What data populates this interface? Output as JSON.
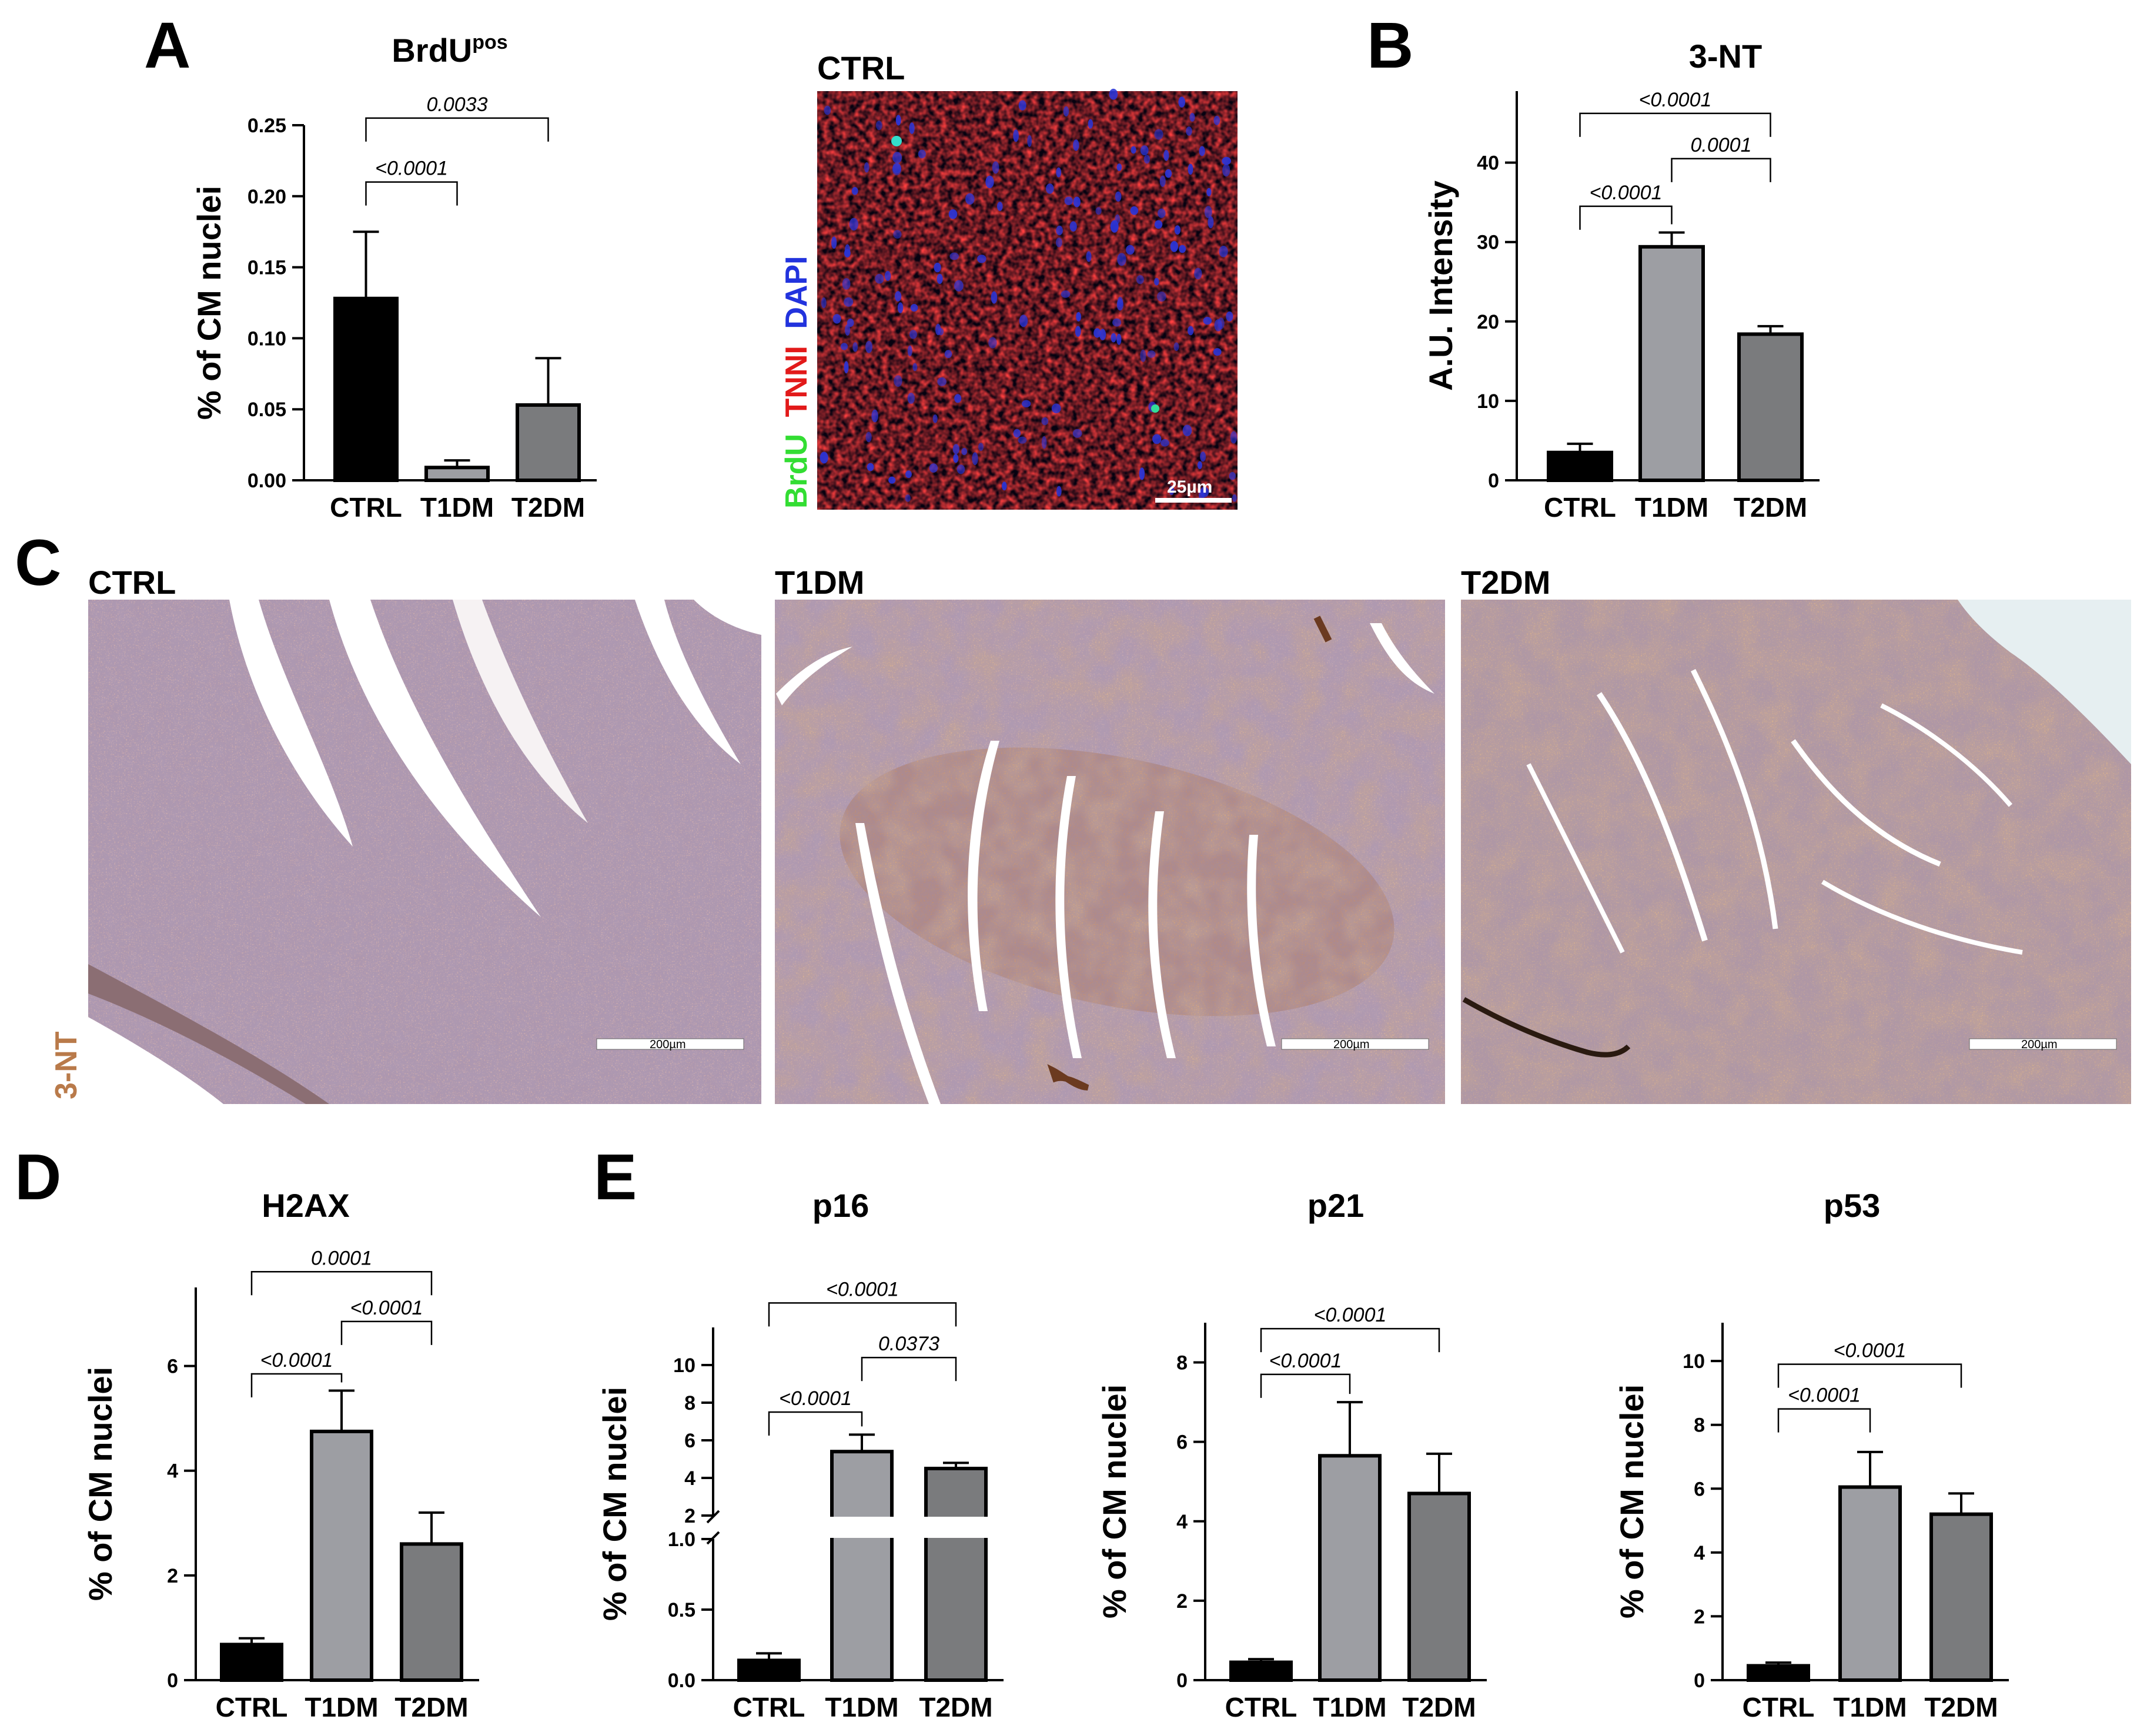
{
  "colors": {
    "ctrl": "#000000",
    "t1dm": "#9d9ea3",
    "t2dm": "#7a7b7d",
    "brdu": "#33dd33",
    "tnni": "#e21a1a",
    "dapi": "#2233dd",
    "stain_3nt": "#b97a4a",
    "tissue_base": "#c9aab2",
    "tissue_brown": "#b5794a"
  },
  "panel_letters": [
    "A",
    "B",
    "C",
    "D",
    "E"
  ],
  "chart_data": [
    {
      "id": "brdu",
      "type": "bar",
      "title": "BrdU",
      "title_sup": "pos",
      "ylabel": "% of CM nuclei",
      "categories": [
        "CTRL",
        "T1DM",
        "T2DM"
      ],
      "values": [
        0.128,
        0.009,
        0.053
      ],
      "errors": [
        0.047,
        0.005,
        0.033
      ],
      "ylim": [
        0,
        0.25
      ],
      "yticks": [
        0,
        0.05,
        0.1,
        0.15,
        0.2,
        0.25
      ],
      "ytick_labels": [
        "0.00",
        "0.05",
        "0.10",
        "0.15",
        "0.20",
        "0.25"
      ],
      "comparisons": [
        {
          "from": 0,
          "to": 1,
          "label": "<0.0001",
          "y": 0.21
        },
        {
          "from": 0,
          "to": 2,
          "label": "0.0033",
          "y": 0.255
        }
      ]
    },
    {
      "id": "nt3",
      "type": "bar",
      "title": "3-NT",
      "ylabel": "A.U. Intensity",
      "categories": [
        "CTRL",
        "T1DM",
        "T2DM"
      ],
      "values": [
        3.5,
        29.4,
        18.4
      ],
      "errors": [
        1.1,
        1.8,
        1.0
      ],
      "ylim": [
        0,
        49
      ],
      "yticks": [
        0,
        10,
        20,
        30,
        40
      ],
      "ytick_labels": [
        "0",
        "10",
        "20",
        "30",
        "40"
      ],
      "comparisons": [
        {
          "from": 0,
          "to": 1,
          "label": "<0.0001",
          "y": 34.5
        },
        {
          "from": 1,
          "to": 2,
          "label": "0.0001",
          "y": 40.5
        },
        {
          "from": 0,
          "to": 2,
          "label": "<0.0001",
          "y": 46.2
        }
      ]
    },
    {
      "id": "h2ax",
      "type": "bar",
      "title": "H2AX",
      "ylabel": "% of CM nuclei",
      "categories": [
        "CTRL",
        "T1DM",
        "T2DM"
      ],
      "values": [
        0.68,
        4.75,
        2.6
      ],
      "errors": [
        0.12,
        0.78,
        0.6
      ],
      "ylim": [
        0,
        7.5
      ],
      "yticks": [
        0,
        2,
        4,
        6
      ],
      "ytick_labels": [
        "0",
        "2",
        "4",
        "6"
      ],
      "comparisons": [
        {
          "from": 0,
          "to": 1,
          "label": "<0.0001",
          "y": 5.85
        },
        {
          "from": 1,
          "to": 2,
          "label": "<0.0001",
          "y": 6.85
        },
        {
          "from": 0,
          "to": 2,
          "label": "0.0001",
          "y": 7.8
        }
      ]
    },
    {
      "id": "p16",
      "type": "bar",
      "title": "p16",
      "ylabel": "% of CM nuclei",
      "categories": [
        "CTRL",
        "T1DM",
        "T2DM"
      ],
      "values": [
        0.14,
        5.4,
        4.5
      ],
      "errors": [
        0.05,
        0.9,
        0.3
      ],
      "broken_axis": true,
      "ylim_lower": [
        0,
        1.0
      ],
      "ylim_upper": [
        2,
        12
      ],
      "yticks_lower": [
        0,
        0.5,
        1.0
      ],
      "ytick_labels_lower": [
        "0.0",
        "0.5",
        "1.0"
      ],
      "yticks_upper": [
        2,
        4,
        6,
        8,
        10
      ],
      "ytick_labels_upper": [
        "2",
        "4",
        "6",
        "8",
        "10"
      ],
      "comparisons": [
        {
          "from": 0,
          "to": 1,
          "label": "<0.0001",
          "y": 7.5
        },
        {
          "from": 1,
          "to": 2,
          "label": "0.0373",
          "y": 10.4
        },
        {
          "from": 0,
          "to": 2,
          "label": "<0.0001",
          "y": 13.3
        }
      ]
    },
    {
      "id": "p21",
      "type": "bar",
      "title": "p21",
      "ylabel": "% of CM nuclei",
      "categories": [
        "CTRL",
        "T1DM",
        "T2DM"
      ],
      "values": [
        0.45,
        5.65,
        4.7
      ],
      "errors": [
        0.08,
        1.35,
        1.0
      ],
      "ylim": [
        0,
        9
      ],
      "yticks": [
        0,
        2,
        4,
        6,
        8
      ],
      "ytick_labels": [
        "0",
        "2",
        "4",
        "6",
        "8"
      ],
      "comparisons": [
        {
          "from": 0,
          "to": 1,
          "label": "<0.0001",
          "y": 7.7
        },
        {
          "from": 0,
          "to": 2,
          "label": "<0.0001",
          "y": 8.85
        }
      ]
    },
    {
      "id": "p53",
      "type": "bar",
      "title": "p53",
      "ylabel": "% of CM nuclei",
      "categories": [
        "CTRL",
        "T1DM",
        "T2DM"
      ],
      "values": [
        0.45,
        6.05,
        5.2
      ],
      "errors": [
        0.1,
        1.1,
        0.65
      ],
      "ylim": [
        0,
        11.2
      ],
      "yticks": [
        0,
        2,
        4,
        6,
        8,
        10
      ],
      "ytick_labels": [
        "0",
        "2",
        "4",
        "6",
        "8",
        "10"
      ],
      "comparisons": [
        {
          "from": 0,
          "to": 1,
          "label": "<0.0001",
          "y": 8.5
        },
        {
          "from": 0,
          "to": 2,
          "label": "<0.0001",
          "y": 9.9
        }
      ]
    }
  ],
  "panel_a_image": {
    "title": "CTRL",
    "stain_labels": [
      {
        "text": "BrdU",
        "color": "#33dd33"
      },
      {
        "text": "TNNI",
        "color": "#e21a1a"
      },
      {
        "text": "DAPI",
        "color": "#2233dd"
      }
    ],
    "scale_bar": "25µm"
  },
  "panel_c": {
    "stain_label": "3-NT",
    "images": [
      {
        "title": "CTRL",
        "scale_bar": "200µm"
      },
      {
        "title": "T1DM",
        "scale_bar": "200µm"
      },
      {
        "title": "T2DM",
        "scale_bar": "200µm"
      }
    ]
  }
}
